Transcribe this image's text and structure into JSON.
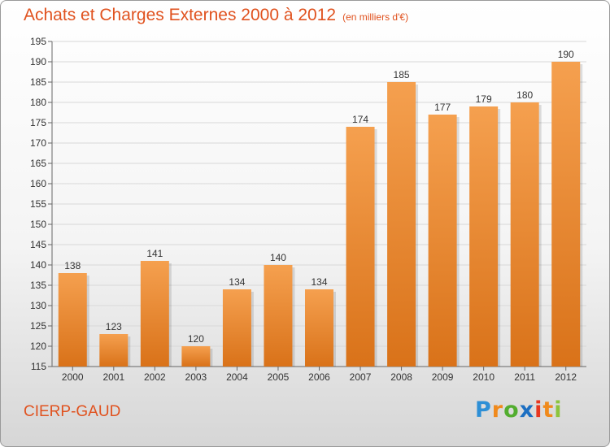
{
  "header": {
    "title": "Achats et Charges Externes 2000 à 2012",
    "unit": "(en milliers d'€)"
  },
  "footer": {
    "commune": "CIERP-GAUD",
    "logo_letters": [
      "P",
      "r",
      "o",
      "x",
      "i",
      "t",
      "i"
    ]
  },
  "colors": {
    "title": "#e0521f",
    "bar_top": "#f5a04f",
    "bar_bottom": "#d97219",
    "grid": "#d8d8d8"
  },
  "chart_data": {
    "type": "bar",
    "title": "Achats et Charges Externes 2000 à 2012",
    "subtitle": "(en milliers d'€)",
    "xlabel": "",
    "ylabel": "",
    "categories": [
      "2000",
      "2001",
      "2002",
      "2003",
      "2004",
      "2005",
      "2006",
      "2007",
      "2008",
      "2009",
      "2010",
      "2011",
      "2012"
    ],
    "values": [
      138,
      123,
      141,
      120,
      134,
      140,
      134,
      174,
      185,
      177,
      179,
      180,
      190
    ],
    "ylim": [
      115,
      195
    ],
    "yticks": [
      115,
      120,
      125,
      130,
      135,
      140,
      145,
      150,
      155,
      160,
      165,
      170,
      175,
      180,
      185,
      190,
      195
    ],
    "grid": true,
    "legend": "none",
    "data_labels": true
  }
}
